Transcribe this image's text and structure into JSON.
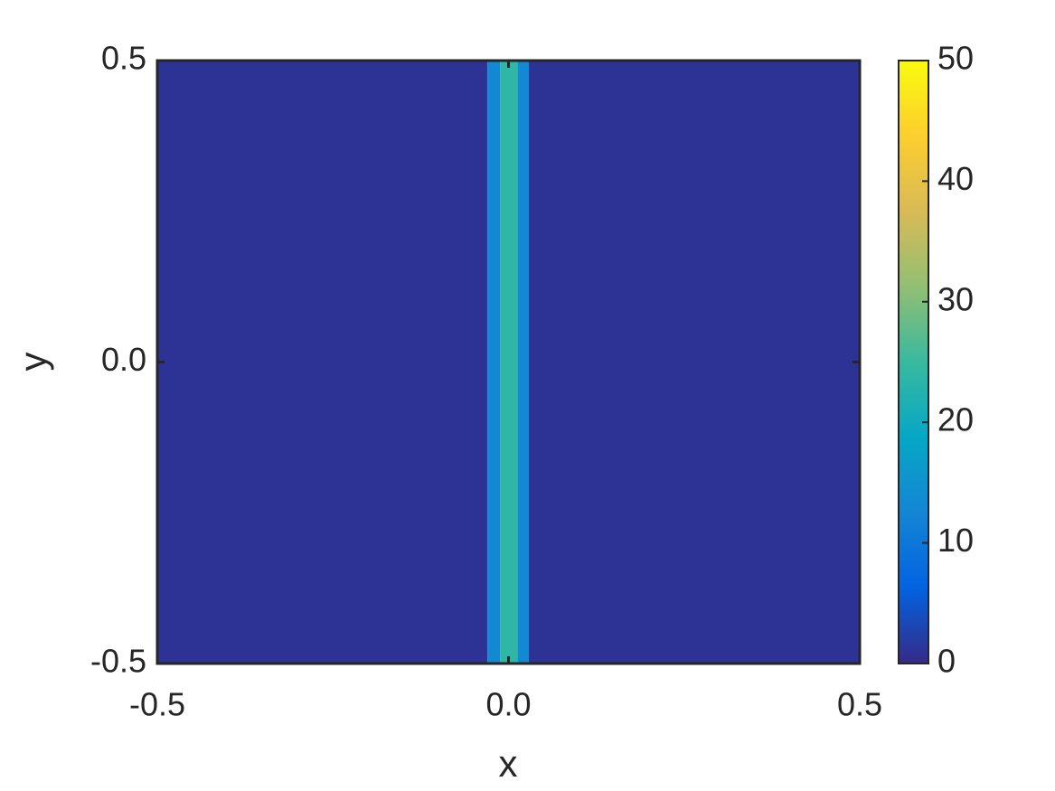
{
  "chart_data": {
    "type": "heatmap",
    "xlabel": "x",
    "ylabel": "y",
    "x_edges": [
      -0.5,
      -0.03,
      -0.012,
      0.013,
      0.029,
      0.5
    ],
    "values": [
      1,
      13,
      24,
      13,
      1
    ],
    "xlim": [
      -0.5,
      0.5
    ],
    "ylim": [
      -0.5,
      0.5
    ],
    "xticks": [
      -0.5,
      {
        "value": 0,
        "label": "0.0"
      },
      0.5
    ],
    "yticks": [
      -0.5,
      {
        "value": 0,
        "label": "0.0"
      },
      0.5
    ],
    "clim": [
      0,
      50
    ],
    "cticks": [
      0,
      10,
      20,
      30,
      40,
      50
    ],
    "colormap": [
      "#352a87",
      "#0363e1",
      "#1485d4",
      "#06a7c6",
      "#38b99e",
      "#92bf73",
      "#d9ba56",
      "#fcce2e",
      "#f9fb0e"
    ]
  }
}
